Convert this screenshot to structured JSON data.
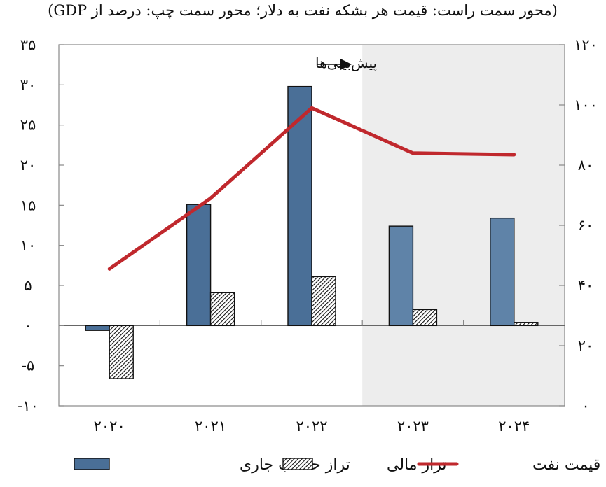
{
  "chart_data": {
    "type": "bar",
    "title": "(محور سمت راست: قیمت هر بشکه نفت به دلار؛ محور سمت چپ: درصد از GDP)",
    "categories": [
      "۲۰۲۰",
      "۲۰۲۱",
      "۲۰۲۲",
      "۲۰۲۳",
      "۲۰۲۴"
    ],
    "forecast_from_index": 3,
    "forecast_label": "پیش‌بینی‌ها",
    "left_axis": {
      "ylim": [
        -10,
        35
      ],
      "ticks": [
        -10,
        -5,
        0,
        5,
        10,
        15,
        20,
        25,
        30,
        35
      ],
      "tick_labels": [
        "-۱۰",
        "-۵",
        "۰",
        "۵",
        "۱۰",
        "۱۵",
        "۲۰",
        "۲۵",
        "۳۰",
        "۳۵"
      ]
    },
    "right_axis": {
      "ylim": [
        0,
        120
      ],
      "ticks": [
        0,
        20,
        40,
        60,
        80,
        100,
        120
      ],
      "tick_labels": [
        "۰",
        "۲۰",
        "۴۰",
        "۶۰",
        "۸۰",
        "۱۰۰",
        "۱۲۰"
      ]
    },
    "series": [
      {
        "name": "تراز حساب جاری",
        "type": "bar",
        "axis": "left",
        "values": [
          -0.6,
          15.1,
          29.8,
          12.4,
          13.4
        ],
        "color": "#4a6f97",
        "color_forecast": "#5f83a8"
      },
      {
        "name": "تراز مالی",
        "type": "bar",
        "axis": "left",
        "pattern": "hatch",
        "values": [
          -6.6,
          4.1,
          6.1,
          2.0,
          0.4
        ]
      },
      {
        "name": "قیمت نفت",
        "type": "line",
        "axis": "right",
        "values": [
          45.5,
          69,
          99,
          84,
          83.5
        ],
        "color": "#c0282d"
      }
    ],
    "legend_placement": "bottom",
    "grid": false
  }
}
